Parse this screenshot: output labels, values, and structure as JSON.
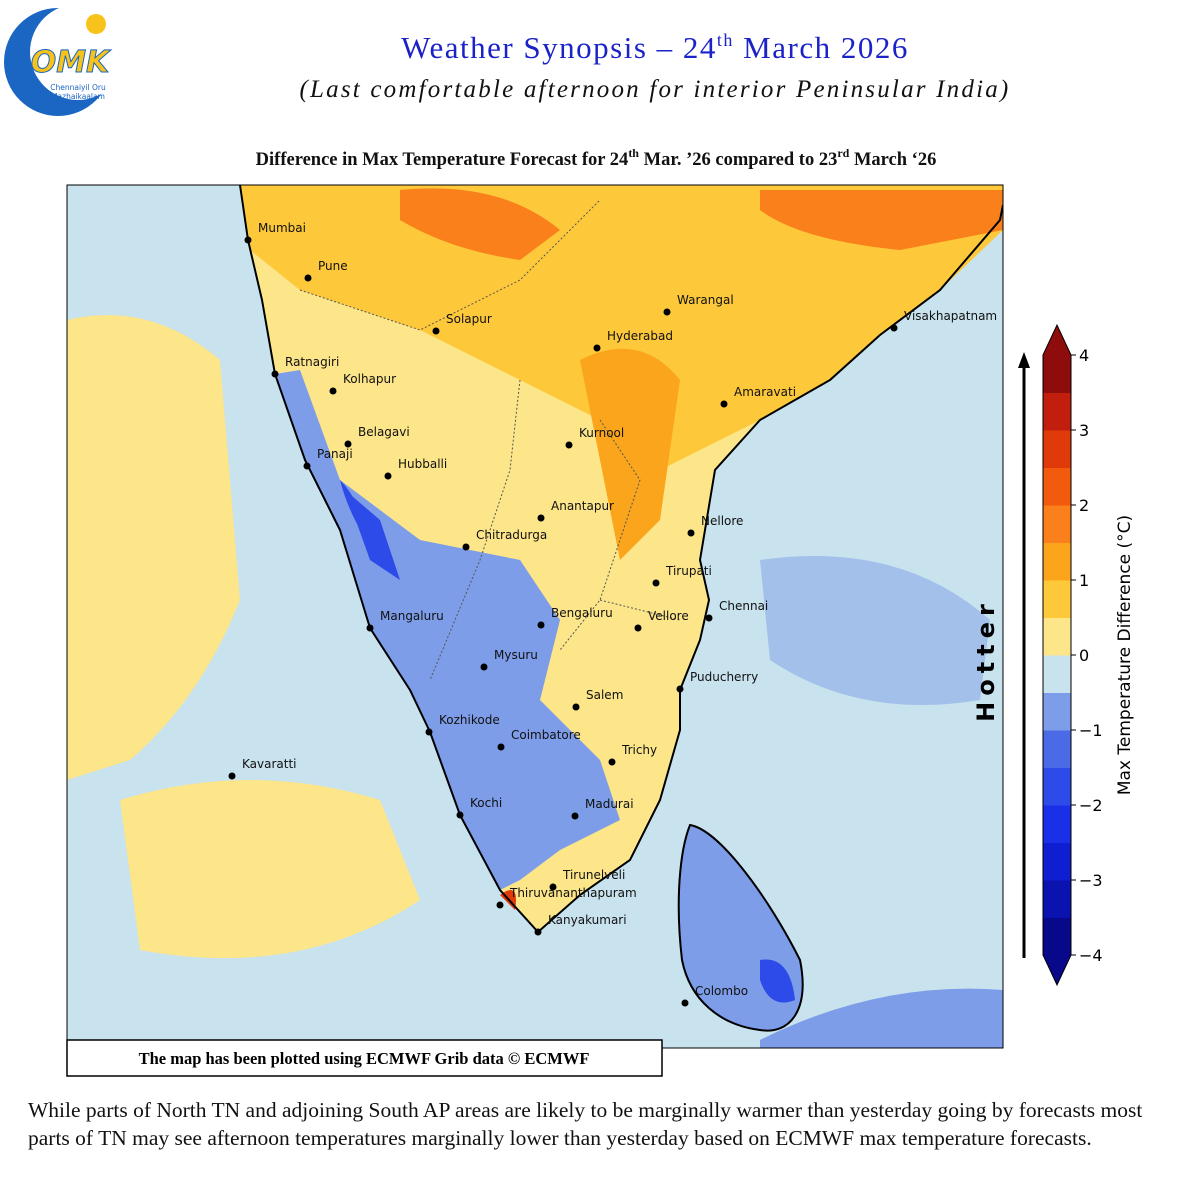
{
  "logo": {
    "mark": "OMK",
    "line1": "Chennaiyil Oru",
    "line2": "Mazhaikaalam"
  },
  "header": {
    "title": {
      "before": "Weather Synopsis – 24",
      "sup": "th",
      "after": " March 2026"
    },
    "subtitle": "(Last comfortable afternoon for interior Peninsular India)"
  },
  "map": {
    "title": {
      "part1": "Difference in Max Temperature Forecast  for 24",
      "sup1": "th",
      "part2": " Mar. ’26  compared to 23",
      "sup2": "rd",
      "part3": " March ‘26"
    },
    "cities": [
      "Mumbai",
      "Pune",
      "Solapur",
      "Warangal",
      "Hyderabad",
      "Visakhapatnam",
      "Ratnagiri",
      "Kolhapur",
      "Amaravati",
      "Belagavi",
      "Kurnool",
      "Panaji",
      "Hubballi",
      "Anantapur",
      "Nellore",
      "Chitradurga",
      "Tirupati",
      "Chennai",
      "Mangaluru",
      "Bengaluru",
      "Vellore",
      "Mysuru",
      "Puducherry",
      "Salem",
      "Kozhikode",
      "Coimbatore",
      "Trichy",
      "Kavaratti",
      "Kochi",
      "Madurai",
      "Tirunelveli",
      "Thiruvananthapuram",
      "Kanyakumari",
      "Colombo"
    ],
    "credit": "The map has been plotted using ECMWF Grib data © ECMWF",
    "arrow_label": "Hotter",
    "colorbar": {
      "label": "Max Temperature Difference (°C)",
      "range": [
        -4,
        4
      ],
      "ticks": [
        4,
        3,
        2,
        1,
        0,
        {
          "value": -1,
          "label": "−1"
        },
        {
          "value": -2,
          "label": "−2"
        },
        {
          "value": -3,
          "label": "−3"
        },
        {
          "value": -4,
          "label": "−4"
        }
      ],
      "colors": [
        "#08088a",
        "#0a12b0",
        "#0e1ed0",
        "#1a30e8",
        "#2d4be8",
        "#4a6ae6",
        "#7d9de8",
        "#c8e2ee",
        "#fde58a",
        "#fdc83a",
        "#fba51c",
        "#f9801a",
        "#f25a0e",
        "#e03a0a",
        "#c21e0e",
        "#8e0c0c"
      ]
    }
  },
  "description": "While parts of North TN and adjoining South AP areas are likely to be marginally warmer than yesterday going by forecasts most parts of TN may see afternoon temperatures marginally lower than yesterday based on ECMWF max temperature forecasts."
}
